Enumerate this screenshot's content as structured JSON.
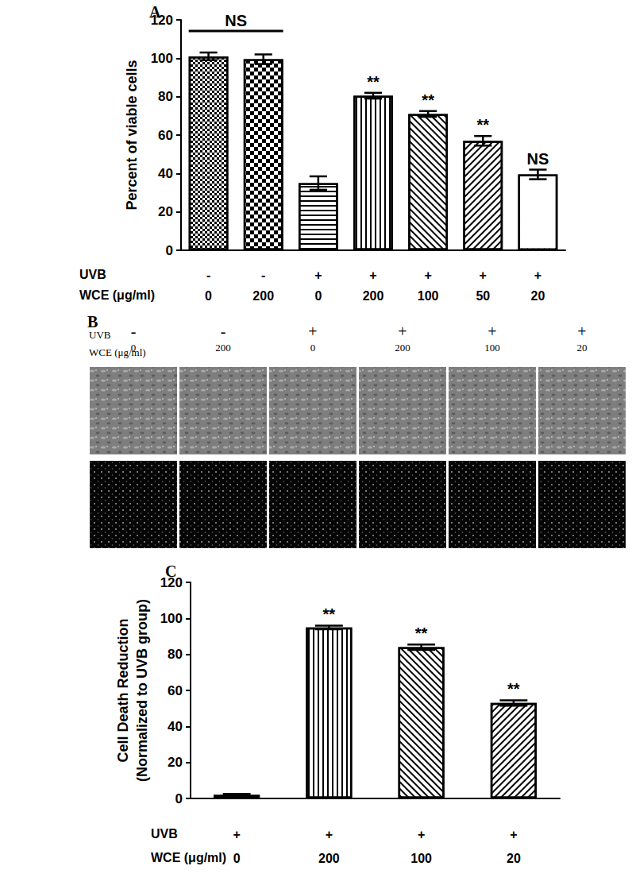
{
  "chart_data": [
    {
      "type": "bar",
      "title": "A",
      "y_label": "Percent of viable cells",
      "x_rows": [
        {
          "label": "UVB",
          "values": [
            "-",
            "-",
            "+",
            "+",
            "+",
            "+",
            "+"
          ]
        },
        {
          "label": "WCE (μg/ml)",
          "values": [
            0,
            200,
            0,
            200,
            100,
            50,
            20
          ]
        }
      ],
      "values": [
        101,
        99.5,
        35,
        80.5,
        71,
        57,
        39.5
      ],
      "errors": [
        2,
        2.5,
        3.5,
        1.5,
        1.5,
        2.5,
        2.5
      ],
      "annotations": [
        {
          "text": "NS",
          "from": 0,
          "to": 1
        },
        {
          "text": "**",
          "at": 3
        },
        {
          "text": "**",
          "at": 4
        },
        {
          "text": "**",
          "at": 5
        },
        {
          "text": "NS",
          "at": 6
        }
      ],
      "color": "#ffffff",
      "ylim": [
        0,
        120
      ],
      "yticks": [
        0,
        20,
        40,
        60,
        80,
        100,
        120
      ],
      "grid": false
    },
    {
      "type": "bar",
      "title": "C",
      "y_label": "Cell Death Reduction\n(Normalized to UVB group)",
      "x_rows": [
        {
          "label": "UVB",
          "values": [
            "+",
            "+",
            "+",
            "+"
          ]
        },
        {
          "label": "WCE (μg/ml)",
          "values": [
            0,
            200,
            100,
            20
          ]
        }
      ],
      "values": [
        2,
        95,
        84,
        53
      ],
      "errors": [
        0.5,
        1,
        1.5,
        1.5
      ],
      "annotations": [
        {
          "text": "**",
          "at": 1
        },
        {
          "text": "**",
          "at": 2
        },
        {
          "text": "**",
          "at": 3
        }
      ],
      "color": "#ffffff",
      "ylim": [
        0,
        120
      ],
      "yticks": [
        0,
        20,
        40,
        60,
        80,
        100,
        120
      ],
      "grid": false
    }
  ],
  "panel_b": {
    "title": "B",
    "rows": [
      {
        "label": "UVB",
        "values": [
          "-",
          "-",
          "+",
          "+",
          "+",
          "+"
        ]
      },
      {
        "label": "WCE (μg/ml)",
        "values": [
          0,
          200,
          0,
          200,
          100,
          20
        ]
      }
    ]
  }
}
